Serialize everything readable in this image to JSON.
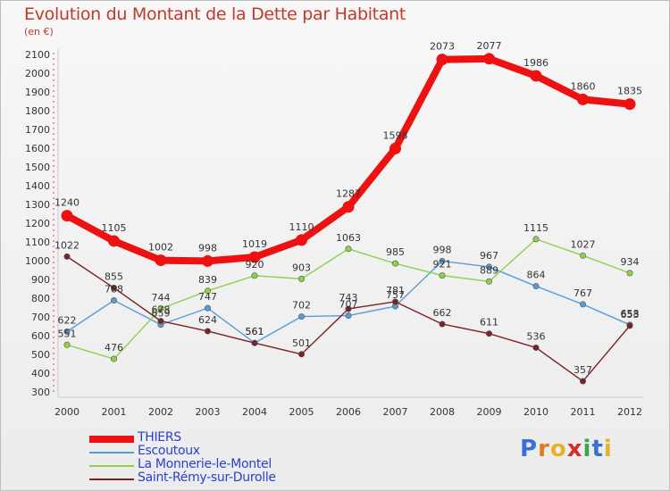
{
  "header": {
    "title": "Evolution du Montant de la Dette par Habitant",
    "unit": "(en €)"
  },
  "logo": {
    "text": "Proxiti",
    "letters": [
      "P",
      "r",
      "o",
      "x",
      "i",
      "t",
      "i"
    ],
    "colors": [
      "#3a6fd8",
      "#e07b21",
      "#e4b22b",
      "#d92b2b",
      "#3aa64a",
      "#3a6fd8",
      "#e4b22b"
    ]
  },
  "chart_data": {
    "type": "line",
    "title": "Evolution du Montant de la Dette par Habitant",
    "ylabel": "(en €)",
    "ylim": [
      300,
      2100
    ],
    "yticks": [
      300,
      400,
      500,
      600,
      700,
      800,
      900,
      1000,
      1100,
      1200,
      1300,
      1400,
      1500,
      1600,
      1700,
      1800,
      1900,
      2000,
      2100
    ],
    "x": [
      "2000",
      "2001",
      "2002",
      "2003",
      "2004",
      "2005",
      "2006",
      "2007",
      "2008",
      "2009",
      "2010",
      "2011",
      "2012"
    ],
    "grid": false,
    "legend": "bottom-left",
    "series": [
      {
        "name": "THIERS",
        "color": "#ee1111",
        "values": [
          1240,
          1105,
          1002,
          998,
          1019,
          1110,
          1287,
          1598,
          2073,
          2077,
          1986,
          1860,
          1835
        ]
      },
      {
        "name": "Escoutoux",
        "color": "#5b9bd5",
        "values": [
          622,
          788,
          659,
          747,
          561,
          702,
          707,
          757,
          998,
          967,
          864,
          767,
          658
        ]
      },
      {
        "name": "La Monnerie-le-Montel",
        "color": "#8ed14c",
        "values": [
          551,
          476,
          744,
          839,
          920,
          903,
          1063,
          985,
          921,
          889,
          1115,
          1027,
          934
        ]
      },
      {
        "name": "Saint-Rémy-sur-Durolle",
        "color": "#7a2323",
        "values": [
          1022,
          855,
          678,
          624,
          561,
          501,
          743,
          781,
          662,
          611,
          536,
          357,
          653
        ]
      }
    ]
  }
}
